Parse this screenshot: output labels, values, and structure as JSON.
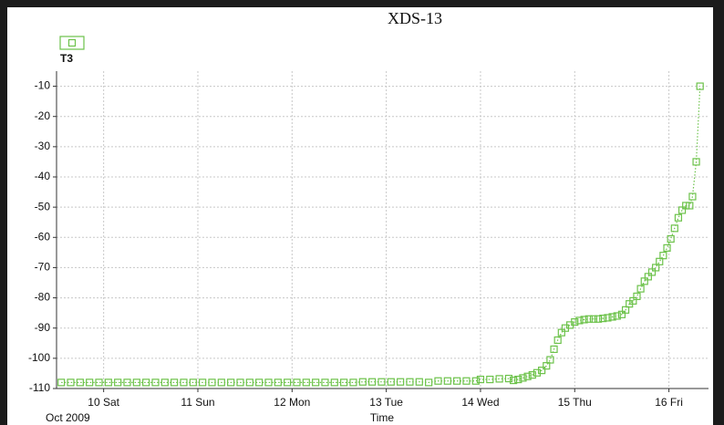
{
  "chart_data": {
    "type": "line",
    "title": "XDS-13",
    "x_label": "Time",
    "x_sublabel": "Oct 2009",
    "x": [
      9.55,
      9.65,
      9.75,
      9.85,
      9.95,
      10.05,
      10.15,
      10.25,
      10.35,
      10.45,
      10.55,
      10.65,
      10.75,
      10.85,
      10.95,
      11.05,
      11.15,
      11.25,
      11.35,
      11.45,
      11.55,
      11.65,
      11.75,
      11.85,
      11.95,
      12.05,
      12.15,
      12.25,
      12.35,
      12.45,
      12.55,
      12.65,
      12.75,
      12.85,
      12.95,
      13.05,
      13.15,
      13.25,
      13.35,
      13.45,
      13.55,
      13.65,
      13.75,
      13.85,
      13.95,
      14.0,
      14.1,
      14.2,
      14.3,
      14.35,
      14.4,
      14.45,
      14.5,
      14.55,
      14.6,
      14.65,
      14.7,
      14.74,
      14.78,
      14.82,
      14.86,
      14.9,
      14.95,
      15.0,
      15.05,
      15.1,
      15.15,
      15.2,
      15.25,
      15.3,
      15.35,
      15.4,
      15.45,
      15.5,
      15.54,
      15.58,
      15.62,
      15.66,
      15.7,
      15.74,
      15.78,
      15.82,
      15.86,
      15.9,
      15.94,
      15.98,
      16.02,
      16.06,
      16.1,
      16.14,
      16.18,
      16.22,
      16.25,
      16.29,
      16.33
    ],
    "series": [
      {
        "name": "T3",
        "color": "#6cc24a",
        "values": [
          -108,
          -108,
          -108,
          -108,
          -108,
          -108,
          -108,
          -108,
          -108,
          -108,
          -108,
          -108,
          -108,
          -108,
          -108,
          -108,
          -108,
          -108,
          -108,
          -108,
          -108,
          -108,
          -108,
          -108,
          -108,
          -108,
          -108,
          -108,
          -108,
          -108,
          -108,
          -108,
          -107.8,
          -107.8,
          -107.8,
          -107.8,
          -107.8,
          -107.8,
          -107.8,
          -108,
          -107.5,
          -107.5,
          -107.5,
          -107.5,
          -107.5,
          -107,
          -107,
          -106.8,
          -106.7,
          -107.3,
          -107,
          -106.5,
          -106,
          -105.5,
          -104.8,
          -104,
          -102.5,
          -100.5,
          -97,
          -94,
          -91.5,
          -90,
          -89,
          -88,
          -87.5,
          -87.2,
          -87,
          -87,
          -87,
          -86.8,
          -86.6,
          -86.3,
          -86,
          -85.5,
          -84,
          -82,
          -81,
          -79.5,
          -77,
          -74.5,
          -73,
          -71.5,
          -70,
          -68,
          -66,
          -63.5,
          -60.5,
          -57,
          -53.5,
          -51,
          -49.5,
          -49.5,
          -46.5,
          -35,
          -10
        ]
      }
    ],
    "xlim": [
      9.5,
      16.42
    ],
    "xticks": [
      {
        "value": 10,
        "label": "10 Sat"
      },
      {
        "value": 11,
        "label": "11 Sun"
      },
      {
        "value": 12,
        "label": "12 Mon"
      },
      {
        "value": 13,
        "label": "13 Tue"
      },
      {
        "value": 14,
        "label": "14 Wed"
      },
      {
        "value": 15,
        "label": "15 Thu"
      },
      {
        "value": 16,
        "label": "16 Fri"
      }
    ],
    "ylim": [
      -110,
      -5
    ],
    "yticks": [
      -110,
      -100,
      -90,
      -80,
      -70,
      -60,
      -50,
      -40,
      -30,
      -20,
      -10
    ],
    "grid": true
  }
}
